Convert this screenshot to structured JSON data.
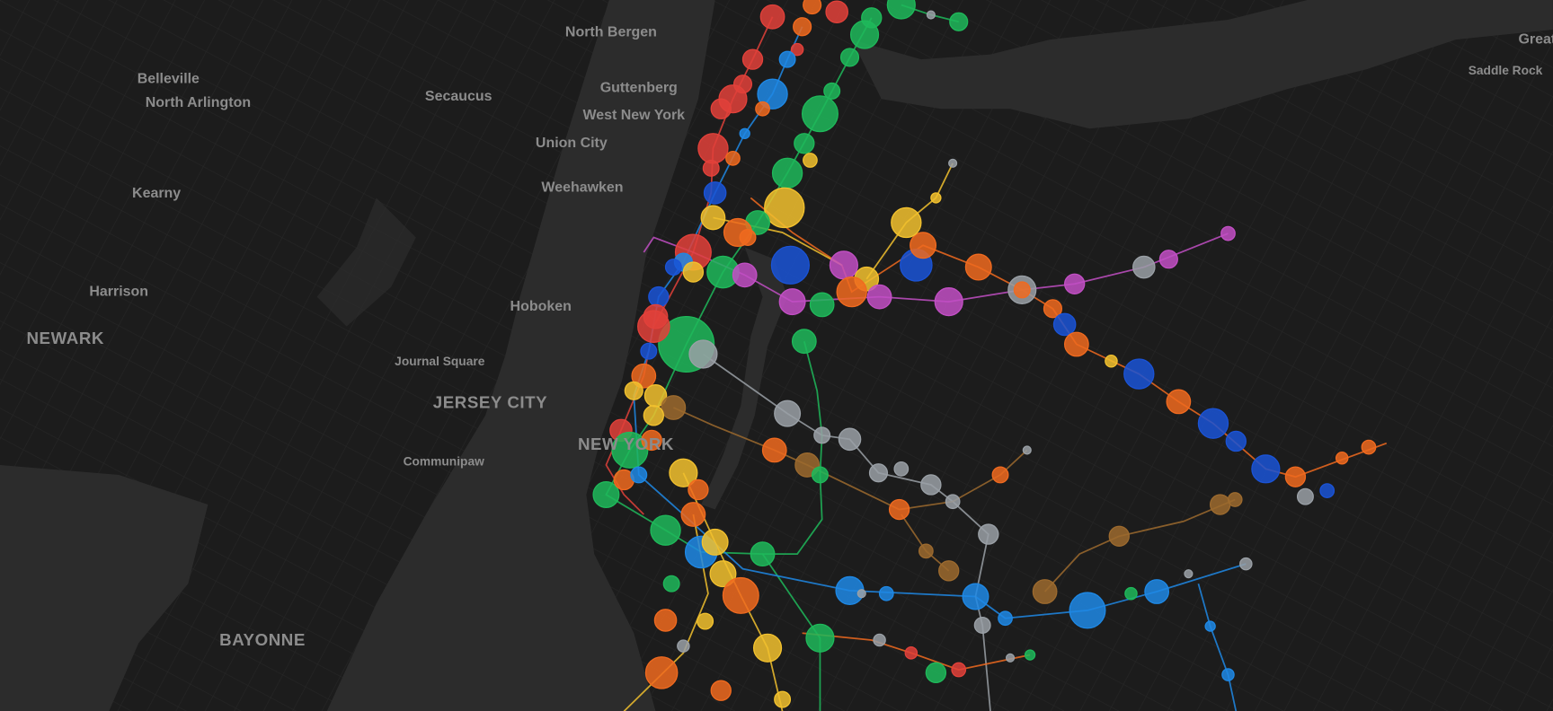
{
  "map": {
    "labels": [
      "North Bergen",
      "Belleville",
      "North Arlington",
      "Secaucus",
      "Guttenberg",
      "West New York",
      "Union City",
      "Kearny",
      "Weehawken",
      "Harrison",
      "Hoboken",
      "NEWARK",
      "Journal Square",
      "JERSEY CITY",
      "NEW YORK",
      "Communipaw",
      "BAYONNE",
      "Great",
      "Saddle Rock"
    ]
  }
}
